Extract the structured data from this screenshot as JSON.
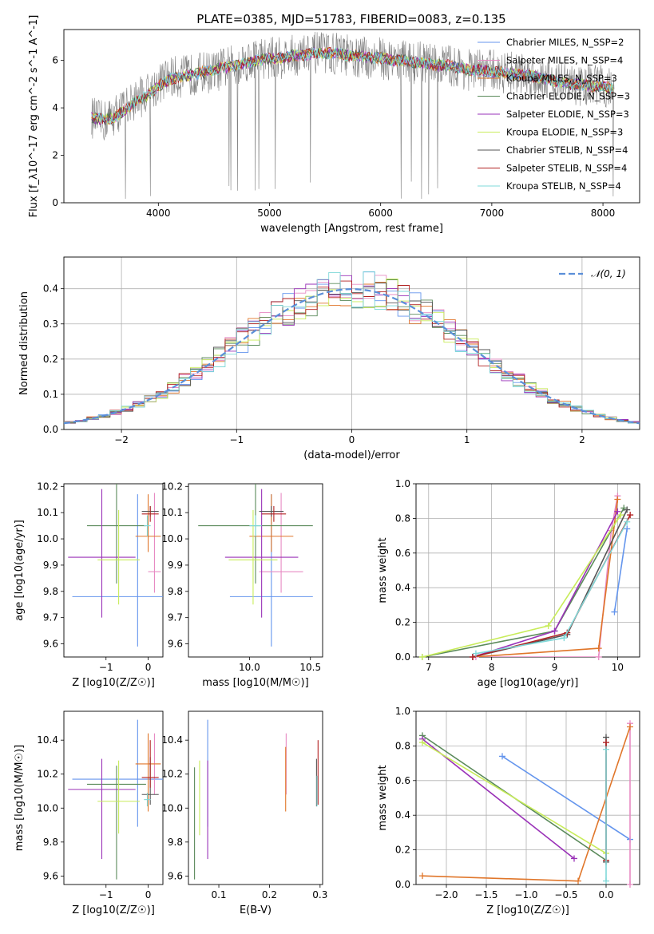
{
  "figure_title": "PLATE=0385, MJD=51783, FIBERID=0083, z=0.135",
  "colors": {
    "chabrier_miles": "#6495ed",
    "salpeter_miles": "#e78ac3",
    "kroupa_miles": "#e0762a",
    "chabrier_elodie": "#5a8a5a",
    "salpeter_elodie": "#9a32b8",
    "kroupa_elodie": "#c8ec5a",
    "chabrier_stelib": "#555555",
    "salpeter_stelib": "#b22222",
    "kroupa_stelib": "#7fd8d8",
    "observed_spectrum": "#808080",
    "normal_curve": "#5b8fd9"
  },
  "chart_data": [
    {
      "id": "spectrum",
      "type": "line",
      "title": "PLATE=0385, MJD=51783, FIBERID=0083, z=0.135",
      "xlabel": "wavelength [Angstrom, rest frame]",
      "ylabel": "Flux [f_λ10^-17 erg cm^-2 s^-1 A^-1]",
      "xlim": [
        3150,
        8330
      ],
      "ylim": [
        0,
        7.3
      ],
      "xticks": [
        4000,
        5000,
        6000,
        7000,
        8000
      ],
      "yticks": [
        0,
        2,
        4,
        6
      ],
      "grid": false,
      "legend_position": "upper-right",
      "legend": [
        {
          "label": "Chabrier MILES, N_SSP=2",
          "color_key": "chabrier_miles"
        },
        {
          "label": "Salpeter MILES, N_SSP=4",
          "color_key": "salpeter_miles"
        },
        {
          "label": "Kroupa MILES, N_SSP=3",
          "color_key": "kroupa_miles"
        },
        {
          "label": "Chabrier ELODIE, N_SSP=3",
          "color_key": "chabrier_elodie"
        },
        {
          "label": "Salpeter ELODIE, N_SSP=3",
          "color_key": "salpeter_elodie"
        },
        {
          "label": "Kroupa ELODIE, N_SSP=3",
          "color_key": "kroupa_elodie"
        },
        {
          "label": "Chabrier STELIB, N_SSP=4",
          "color_key": "chabrier_stelib"
        },
        {
          "label": "Salpeter STELIB, N_SSP=4",
          "color_key": "salpeter_stelib"
        },
        {
          "label": "Kroupa STELIB, N_SSP=4",
          "color_key": "kroupa_stelib"
        }
      ],
      "observed": {
        "x": [
          3400,
          3500,
          3600,
          3700,
          3800,
          3900,
          4000,
          4100,
          4200,
          4300,
          4400,
          4500,
          4600,
          4700,
          4800,
          4900,
          5000,
          5100,
          5200,
          5300,
          5400,
          5500,
          5600,
          5700,
          5800,
          5900,
          6000,
          6100,
          6200,
          6300,
          6400,
          6500,
          6600,
          6700,
          6800,
          6900,
          7000,
          7100,
          7200,
          7300,
          7400,
          7500,
          7600,
          7700,
          7800,
          7900,
          8000,
          8100
        ],
        "y": [
          3.6,
          3.4,
          3.7,
          4.0,
          4.4,
          4.6,
          5.0,
          5.3,
          5.3,
          5.4,
          5.5,
          5.5,
          5.7,
          5.8,
          6.0,
          6.1,
          6.1,
          6.1,
          6.2,
          6.2,
          6.3,
          6.3,
          6.3,
          6.2,
          6.1,
          6.1,
          6.1,
          6.0,
          6.0,
          5.9,
          5.9,
          5.8,
          5.8,
          5.7,
          5.6,
          5.6,
          5.6,
          5.5,
          5.5,
          5.4,
          5.3,
          5.3,
          5.1,
          5.0,
          4.9,
          5.0,
          4.9,
          4.8
        ],
        "scatter_amplitude": 0.9
      },
      "model": {
        "x": [
          3400,
          3500,
          3600,
          3700,
          3800,
          3900,
          4000,
          4100,
          4200,
          4300,
          4400,
          4500,
          4600,
          4700,
          4800,
          4900,
          5000,
          5100,
          5200,
          5300,
          5400,
          5500,
          5600,
          5700,
          5800,
          5900,
          6000,
          6100,
          6200,
          6300,
          6400,
          6500,
          6600,
          6700,
          6800,
          6900,
          7000,
          7100,
          7200,
          7300,
          7400,
          7500,
          7600,
          7700,
          7800,
          7900,
          8000,
          8100
        ],
        "y": [
          3.6,
          3.5,
          3.6,
          3.9,
          4.3,
          4.5,
          4.9,
          5.2,
          5.3,
          5.4,
          5.5,
          5.6,
          5.7,
          5.8,
          5.9,
          6.0,
          6.1,
          6.1,
          6.2,
          6.2,
          6.3,
          6.3,
          6.3,
          6.2,
          6.2,
          6.1,
          6.1,
          6.0,
          6.0,
          5.9,
          5.9,
          5.8,
          5.8,
          5.7,
          5.6,
          5.6,
          5.5,
          5.5,
          5.4,
          5.4,
          5.3,
          5.2,
          5.1,
          5.0,
          5.0,
          4.9,
          4.9,
          4.8
        ]
      }
    },
    {
      "id": "residuals",
      "type": "histogram",
      "xlabel": "(data-model)/error",
      "ylabel": "Normed distribution",
      "xlim": [
        -2.5,
        2.5
      ],
      "ylim": [
        0,
        0.49
      ],
      "xticks": [
        -2,
        -1,
        0,
        1,
        2
      ],
      "yticks": [
        0.0,
        0.1,
        0.2,
        0.3,
        0.4
      ],
      "grid": true,
      "legend_position": "upper-right",
      "legend": [
        {
          "label": "𝒩(0, 1)",
          "color_key": "normal_curve",
          "style": "dashed"
        }
      ],
      "bin_width": 0.1
    },
    {
      "id": "age_vs_Z",
      "type": "errorbar",
      "xlabel": "Z [log10(Z/Z☉)]",
      "ylabel": "age [log10(age/yr)]",
      "xlim": [
        -2.0,
        0.35
      ],
      "ylim": [
        9.55,
        10.21
      ],
      "xticks": [
        -1,
        0
      ],
      "yticks": [
        9.6,
        9.7,
        9.8,
        9.9,
        10.0,
        10.1,
        10.2
      ],
      "grid": false,
      "points": [
        {
          "model": "chabrier_miles",
          "x": -0.25,
          "y": 9.78,
          "xerr": 1.55,
          "yerr": [
            0.19,
            0.39
          ]
        },
        {
          "model": "salpeter_miles",
          "x": 0.15,
          "y": 9.875,
          "xerr": 0.15,
          "yerr": [
            0.08,
            0.3
          ]
        },
        {
          "model": "kroupa_miles",
          "x": 0.0,
          "y": 10.01,
          "xerr": 0.3,
          "yerr": [
            0.06,
            0.16
          ]
        },
        {
          "model": "chabrier_elodie",
          "x": -0.75,
          "y": 10.05,
          "xerr": 0.7,
          "yerr": [
            0.22,
            0.16
          ]
        },
        {
          "model": "salpeter_elodie",
          "x": -1.1,
          "y": 9.93,
          "xerr": 0.8,
          "yerr": [
            0.23,
            0.26
          ]
        },
        {
          "model": "kroupa_elodie",
          "x": -0.7,
          "y": 9.92,
          "xerr": 0.5,
          "yerr": [
            0.17,
            0.19
          ]
        },
        {
          "model": "chabrier_stelib",
          "x": 0.05,
          "y": 10.105,
          "xerr": 0.2,
          "yerr": [
            0.02,
            0.02
          ]
        },
        {
          "model": "salpeter_stelib",
          "x": 0.05,
          "y": 10.095,
          "xerr": 0.2,
          "yerr": [
            0.03,
            0.03
          ]
        },
        {
          "model": "kroupa_stelib",
          "x": -0.02,
          "y": 10.05,
          "xerr": 0.08,
          "yerr": [
            0.04,
            0.04
          ]
        }
      ]
    },
    {
      "id": "age_vs_mass",
      "type": "errorbar",
      "xlabel": "mass [log10(M/M☉)]",
      "ylabel": "",
      "xlim": [
        9.5,
        10.6
      ],
      "ylim": [
        9.55,
        10.21
      ],
      "xticks": [
        10.0,
        10.5
      ],
      "yticks": [
        9.6,
        9.7,
        9.8,
        9.9,
        10.0,
        10.1,
        10.2
      ],
      "grid": false,
      "points": [
        {
          "model": "chabrier_miles",
          "x": 10.18,
          "y": 9.78,
          "xerr": 0.34,
          "yerr": [
            0.19,
            0.39
          ]
        },
        {
          "model": "salpeter_miles",
          "x": 10.26,
          "y": 9.875,
          "xerr": 0.18,
          "yerr": [
            0.08,
            0.3
          ]
        },
        {
          "model": "kroupa_miles",
          "x": 10.18,
          "y": 10.01,
          "xerr": 0.18,
          "yerr": [
            0.06,
            0.16
          ]
        },
        {
          "model": "chabrier_elodie",
          "x": 10.05,
          "y": 10.05,
          "xerr": 0.47,
          "yerr": [
            0.22,
            0.16
          ]
        },
        {
          "model": "salpeter_elodie",
          "x": 10.1,
          "y": 9.93,
          "xerr": 0.3,
          "yerr": [
            0.23,
            0.26
          ]
        },
        {
          "model": "kroupa_elodie",
          "x": 10.03,
          "y": 9.92,
          "xerr": 0.2,
          "yerr": [
            0.17,
            0.19
          ]
        },
        {
          "model": "chabrier_stelib",
          "x": 10.18,
          "y": 10.105,
          "xerr": 0.1,
          "yerr": [
            0.02,
            0.02
          ]
        },
        {
          "model": "salpeter_stelib",
          "x": 10.2,
          "y": 10.095,
          "xerr": 0.1,
          "yerr": [
            0.03,
            0.03
          ]
        },
        {
          "model": "kroupa_stelib",
          "x": 10.05,
          "y": 10.05,
          "xerr": 0.05,
          "yerr": [
            0.04,
            0.04
          ]
        }
      ]
    },
    {
      "id": "massweight_vs_age",
      "type": "line",
      "xlabel": "age [log10(age/yr)]",
      "ylabel": "mass weight",
      "xlim": [
        6.8,
        10.35
      ],
      "ylim": [
        0.0,
        1.0
      ],
      "xticks": [
        7,
        8,
        9,
        10
      ],
      "yticks": [
        0.0,
        0.2,
        0.4,
        0.6,
        0.8,
        1.0
      ],
      "grid": true,
      "series": [
        {
          "model": "chabrier_miles",
          "x": [
            9.95,
            10.15
          ],
          "y": [
            0.26,
            0.74
          ]
        },
        {
          "model": "salpeter_miles",
          "x": [
            7.75,
            9.7,
            9.9,
            10.0
          ],
          "y": [
            0.0,
            0.0,
            0.73,
            0.93
          ]
        },
        {
          "model": "kroupa_miles",
          "x": [
            7.7,
            9.7,
            10.0
          ],
          "y": [
            0.0,
            0.05,
            0.91
          ]
        },
        {
          "model": "chabrier_elodie",
          "x": [
            6.9,
            9.0,
            10.1
          ],
          "y": [
            0.0,
            0.15,
            0.86
          ]
        },
        {
          "model": "salpeter_elodie",
          "x": [
            7.7,
            9.0,
            10.0
          ],
          "y": [
            0.0,
            0.15,
            0.84
          ]
        },
        {
          "model": "kroupa_elodie",
          "x": [
            6.9,
            8.9,
            10.05
          ],
          "y": [
            0.0,
            0.18,
            0.82
          ]
        },
        {
          "model": "chabrier_stelib",
          "x": [
            7.7,
            9.2,
            10.15
          ],
          "y": [
            0.0,
            0.13,
            0.85
          ]
        },
        {
          "model": "salpeter_stelib",
          "x": [
            7.7,
            9.2,
            10.2
          ],
          "y": [
            0.0,
            0.14,
            0.82
          ]
        },
        {
          "model": "kroupa_stelib",
          "x": [
            7.75,
            9.15,
            10.15
          ],
          "y": [
            0.02,
            0.11,
            0.78
          ]
        }
      ]
    },
    {
      "id": "mass_vs_Z",
      "type": "errorbar",
      "xlabel": "Z [log10(Z/Z☉)]",
      "ylabel": "mass [log10(M/M☉)]",
      "xlim": [
        -2.0,
        0.35
      ],
      "ylim": [
        9.55,
        10.57
      ],
      "xticks": [
        -1,
        0
      ],
      "yticks": [
        9.6,
        9.8,
        10.0,
        10.2,
        10.4
      ],
      "grid": false,
      "points": [
        {
          "model": "chabrier_miles",
          "x": -0.25,
          "y": 10.17,
          "xerr": 1.55,
          "yerr": [
            0.28,
            0.35
          ]
        },
        {
          "model": "salpeter_miles",
          "x": 0.15,
          "y": 10.26,
          "xerr": 0.15,
          "yerr": [
            0.18,
            0.18
          ]
        },
        {
          "model": "kroupa_miles",
          "x": 0.0,
          "y": 10.26,
          "xerr": 0.3,
          "yerr": [
            0.28,
            0.18
          ]
        },
        {
          "model": "chabrier_elodie",
          "x": -0.75,
          "y": 10.14,
          "xerr": 0.7,
          "yerr": [
            0.56,
            0.11
          ]
        },
        {
          "model": "salpeter_elodie",
          "x": -1.1,
          "y": 10.11,
          "xerr": 0.8,
          "yerr": [
            0.41,
            0.18
          ]
        },
        {
          "model": "kroupa_elodie",
          "x": -0.7,
          "y": 10.04,
          "xerr": 0.5,
          "yerr": [
            0.19,
            0.24
          ]
        },
        {
          "model": "chabrier_stelib",
          "x": 0.05,
          "y": 10.08,
          "xerr": 0.2,
          "yerr": [
            0.06,
            0.22
          ]
        },
        {
          "model": "salpeter_stelib",
          "x": 0.05,
          "y": 10.18,
          "xerr": 0.2,
          "yerr": [
            0.06,
            0.22
          ]
        },
        {
          "model": "kroupa_stelib",
          "x": -0.02,
          "y": 10.05,
          "xerr": 0.08,
          "yerr": [
            0.04,
            0.04
          ]
        }
      ]
    },
    {
      "id": "mass_vs_ebv",
      "type": "errorbar",
      "xlabel": "E(B-V)",
      "ylabel": "",
      "xlim": [
        0.04,
        0.305
      ],
      "ylim": [
        9.55,
        10.57
      ],
      "xticks": [
        0.1,
        0.2,
        0.3
      ],
      "yticks": [
        9.6,
        9.8,
        10.0,
        10.2,
        10.4
      ],
      "grid": false,
      "points": [
        {
          "model": "chabrier_miles",
          "x": 0.078,
          "y": 10.17,
          "xerr": 0,
          "yerr": [
            0.28,
            0.35
          ]
        },
        {
          "model": "salpeter_miles",
          "x": 0.233,
          "y": 10.26,
          "xerr": 0,
          "yerr": [
            0.18,
            0.18
          ]
        },
        {
          "model": "kroupa_miles",
          "x": 0.232,
          "y": 10.17,
          "xerr": 0,
          "yerr": [
            0.19,
            0.19
          ]
        },
        {
          "model": "chabrier_elodie",
          "x": 0.052,
          "y": 9.91,
          "xerr": 0,
          "yerr": [
            0.33,
            0.33
          ]
        },
        {
          "model": "salpeter_elodie",
          "x": 0.078,
          "y": 9.99,
          "xerr": 0,
          "yerr": [
            0.29,
            0.29
          ]
        },
        {
          "model": "kroupa_elodie",
          "x": 0.062,
          "y": 10.06,
          "xerr": 0,
          "yerr": [
            0.22,
            0.22
          ]
        },
        {
          "model": "chabrier_stelib",
          "x": 0.293,
          "y": 10.15,
          "xerr": 0,
          "yerr": [
            0.14,
            0.14
          ]
        },
        {
          "model": "salpeter_stelib",
          "x": 0.296,
          "y": 10.21,
          "xerr": 0,
          "yerr": [
            0.19,
            0.19
          ]
        },
        {
          "model": "kroupa_stelib",
          "x": 0.294,
          "y": 10.1,
          "xerr": 0,
          "yerr": [
            0.09,
            0.09
          ]
        }
      ]
    },
    {
      "id": "massweight_vs_Z",
      "type": "line",
      "xlabel": "Z [log10(Z/Z☉)]",
      "ylabel": "mass weight",
      "xlim": [
        -2.38,
        0.42
      ],
      "ylim": [
        0.0,
        1.0
      ],
      "xticks": [
        -2.0,
        -1.5,
        -1.0,
        -0.5,
        0.0
      ],
      "yticks": [
        0.0,
        0.2,
        0.4,
        0.6,
        0.8,
        1.0
      ],
      "grid": true,
      "series": [
        {
          "model": "chabrier_miles",
          "x": [
            -1.3,
            0.3
          ],
          "y": [
            0.74,
            0.26
          ]
        },
        {
          "model": "salpeter_miles",
          "x": [
            0.3,
            0.3
          ],
          "y": [
            0.0,
            0.93
          ]
        },
        {
          "model": "kroupa_miles",
          "x": [
            -2.3,
            -0.35,
            0.3
          ],
          "y": [
            0.05,
            0.02,
            0.91
          ]
        },
        {
          "model": "chabrier_elodie",
          "x": [
            -2.3,
            0.0
          ],
          "y": [
            0.86,
            0.14
          ]
        },
        {
          "model": "salpeter_elodie",
          "x": [
            -2.3,
            -0.4
          ],
          "y": [
            0.84,
            0.15
          ]
        },
        {
          "model": "kroupa_elodie",
          "x": [
            -2.3,
            0.0
          ],
          "y": [
            0.82,
            0.18
          ]
        },
        {
          "model": "chabrier_stelib",
          "x": [
            0.0,
            0.0
          ],
          "y": [
            0.13,
            0.85
          ]
        },
        {
          "model": "salpeter_stelib",
          "x": [
            0.0,
            0.0
          ],
          "y": [
            0.14,
            0.82
          ]
        },
        {
          "model": "kroupa_stelib",
          "x": [
            0.0,
            0.0
          ],
          "y": [
            0.02,
            0.78
          ]
        }
      ]
    }
  ]
}
